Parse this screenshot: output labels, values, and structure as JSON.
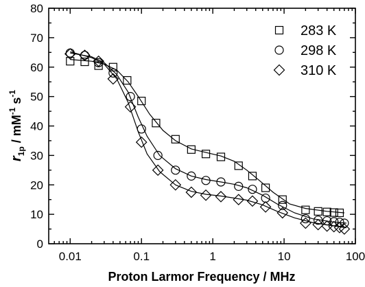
{
  "chart_data": {
    "type": "scatter",
    "xscale": "log",
    "xlim": [
      0.005,
      100
    ],
    "ylim": [
      0,
      80
    ],
    "xlabel": "Proton Larmor Frequency / MHz",
    "ylabel": {
      "r": "r",
      "sub": "1p",
      "mid": " / mM",
      "sup1": "-1",
      "s": " s",
      "sup2": "-1"
    },
    "xticks": [
      {
        "value": 0.01,
        "label": "0.01"
      },
      {
        "value": 0.1,
        "label": "0.1"
      },
      {
        "value": 1,
        "label": "1"
      },
      {
        "value": 10,
        "label": "10"
      },
      {
        "value": 100,
        "label": "100"
      }
    ],
    "yticks": [
      {
        "value": 0,
        "label": "0"
      },
      {
        "value": 10,
        "label": "10"
      },
      {
        "value": 20,
        "label": "20"
      },
      {
        "value": 30,
        "label": "30"
      },
      {
        "value": 40,
        "label": "40"
      },
      {
        "value": 50,
        "label": "50"
      },
      {
        "value": 60,
        "label": "60"
      },
      {
        "value": 70,
        "label": "70"
      },
      {
        "value": 80,
        "label": "80"
      }
    ],
    "legend_position": "top-right",
    "series": [
      {
        "name": "283 K",
        "marker": "square",
        "points": [
          [
            0.01,
            62
          ],
          [
            0.016,
            61.8
          ],
          [
            0.025,
            60.5
          ],
          [
            0.04,
            60
          ],
          [
            0.063,
            55.5
          ],
          [
            0.1,
            48.5
          ],
          [
            0.16,
            41
          ],
          [
            0.3,
            35.5
          ],
          [
            0.5,
            32
          ],
          [
            0.8,
            30.5
          ],
          [
            1.3,
            29.5
          ],
          [
            2.3,
            26.5
          ],
          [
            3.6,
            23
          ],
          [
            5.5,
            19
          ],
          [
            9.5,
            15
          ],
          [
            20,
            11.5
          ],
          [
            30,
            11
          ],
          [
            40,
            10.8
          ],
          [
            50,
            10.6
          ],
          [
            60,
            10.5
          ]
        ],
        "fit": [
          [
            0.01,
            62.6
          ],
          [
            0.02,
            62
          ],
          [
            0.03,
            61
          ],
          [
            0.045,
            59
          ],
          [
            0.065,
            55
          ],
          [
            0.09,
            50
          ],
          [
            0.13,
            44
          ],
          [
            0.2,
            38.5
          ],
          [
            0.3,
            35
          ],
          [
            0.5,
            32.2
          ],
          [
            0.8,
            31
          ],
          [
            1.3,
            29.8
          ],
          [
            2,
            28
          ],
          [
            3,
            25
          ],
          [
            4.5,
            21.5
          ],
          [
            7,
            17.5
          ],
          [
            12,
            13.5
          ],
          [
            20,
            12
          ],
          [
            40,
            11
          ],
          [
            70,
            10.5
          ]
        ]
      },
      {
        "name": "298 K",
        "marker": "circle",
        "points": [
          [
            0.01,
            64.8
          ],
          [
            0.016,
            64
          ],
          [
            0.025,
            61.5
          ],
          [
            0.04,
            58
          ],
          [
            0.07,
            50
          ],
          [
            0.1,
            39
          ],
          [
            0.17,
            30
          ],
          [
            0.3,
            25
          ],
          [
            0.5,
            23
          ],
          [
            0.8,
            21.5
          ],
          [
            1.3,
            21
          ],
          [
            2.3,
            19.5
          ],
          [
            3.6,
            18.5
          ],
          [
            5.5,
            15.5
          ],
          [
            9.5,
            13
          ],
          [
            20,
            8.5
          ],
          [
            30,
            8
          ],
          [
            40,
            7.8
          ],
          [
            50,
            7.5
          ],
          [
            60,
            7.3
          ],
          [
            70,
            7
          ]
        ],
        "fit": [
          [
            0.01,
            64.8
          ],
          [
            0.02,
            63.5
          ],
          [
            0.03,
            61.5
          ],
          [
            0.045,
            57.5
          ],
          [
            0.065,
            51.5
          ],
          [
            0.09,
            43
          ],
          [
            0.12,
            36.5
          ],
          [
            0.18,
            30
          ],
          [
            0.3,
            25.5
          ],
          [
            0.5,
            23
          ],
          [
            0.8,
            21.8
          ],
          [
            1.3,
            21
          ],
          [
            2,
            20.2
          ],
          [
            3,
            19
          ],
          [
            5,
            16.5
          ],
          [
            8,
            13.5
          ],
          [
            14,
            10.5
          ],
          [
            25,
            8.5
          ],
          [
            45,
            7.5
          ],
          [
            75,
            7
          ]
        ]
      },
      {
        "name": "310 K",
        "marker": "diamond",
        "points": [
          [
            0.01,
            64.5
          ],
          [
            0.016,
            64
          ],
          [
            0.025,
            62
          ],
          [
            0.04,
            56
          ],
          [
            0.07,
            46.5
          ],
          [
            0.1,
            34.5
          ],
          [
            0.17,
            25
          ],
          [
            0.3,
            20
          ],
          [
            0.5,
            17.5
          ],
          [
            0.8,
            16.5
          ],
          [
            1.3,
            16
          ],
          [
            2.3,
            15
          ],
          [
            3.6,
            14.5
          ],
          [
            5.5,
            12.5
          ],
          [
            9.5,
            10.5
          ],
          [
            20,
            7
          ],
          [
            30,
            6.5
          ],
          [
            40,
            6
          ],
          [
            50,
            5.8
          ],
          [
            60,
            5.5
          ],
          [
            70,
            5
          ]
        ],
        "fit": [
          [
            0.01,
            65.2
          ],
          [
            0.02,
            63.2
          ],
          [
            0.03,
            61
          ],
          [
            0.045,
            56
          ],
          [
            0.065,
            48
          ],
          [
            0.09,
            38
          ],
          [
            0.12,
            30.5
          ],
          [
            0.18,
            24.5
          ],
          [
            0.3,
            20
          ],
          [
            0.5,
            17.8
          ],
          [
            0.8,
            16.8
          ],
          [
            1.3,
            16.2
          ],
          [
            2,
            15.5
          ],
          [
            3,
            14.8
          ],
          [
            5,
            13.2
          ],
          [
            8,
            11
          ],
          [
            14,
            8.8
          ],
          [
            25,
            7.2
          ],
          [
            45,
            6.2
          ],
          [
            75,
            5.4
          ]
        ]
      }
    ]
  }
}
